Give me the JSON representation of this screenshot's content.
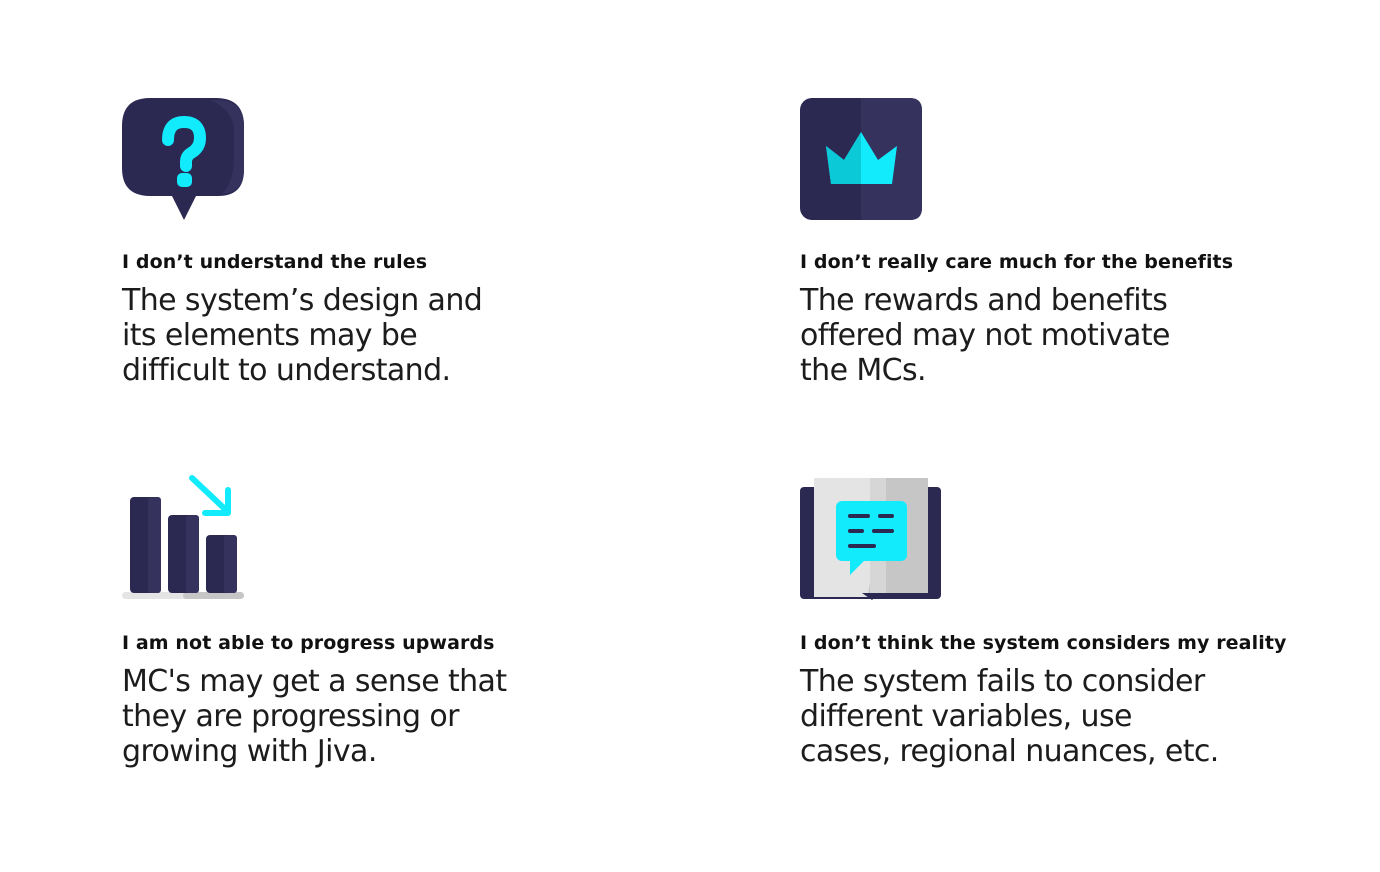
{
  "cards": [
    {
      "icon": "question-bubble-icon",
      "heading": "I don’t understand the rules",
      "body": "The system’s design and\nits elements may be\ndifficult to understand."
    },
    {
      "icon": "crown-icon",
      "heading": "I don’t really care much for the benefits",
      "body": "The rewards and benefits\noffered may not motivate\nthe MCs."
    },
    {
      "icon": "declining-bar-chart-icon",
      "heading": "I am not able to progress upwards",
      "body": "MC's may get a sense that\nthey are progressing or\ngrowing with Jiva."
    },
    {
      "icon": "open-book-chat-icon",
      "heading": "I don’t think the system considers my reality",
      "body": "The system fails to consider\ndifferent variables, use\ncases, regional nuances, etc."
    }
  ],
  "colors": {
    "navy": "#2b2852",
    "navy_light": "#35325e",
    "cyan": "#12ebfb",
    "cyan_dark": "#0cc9d8",
    "grey_light": "#e4e4e4",
    "grey_dark": "#c6c6c6"
  }
}
